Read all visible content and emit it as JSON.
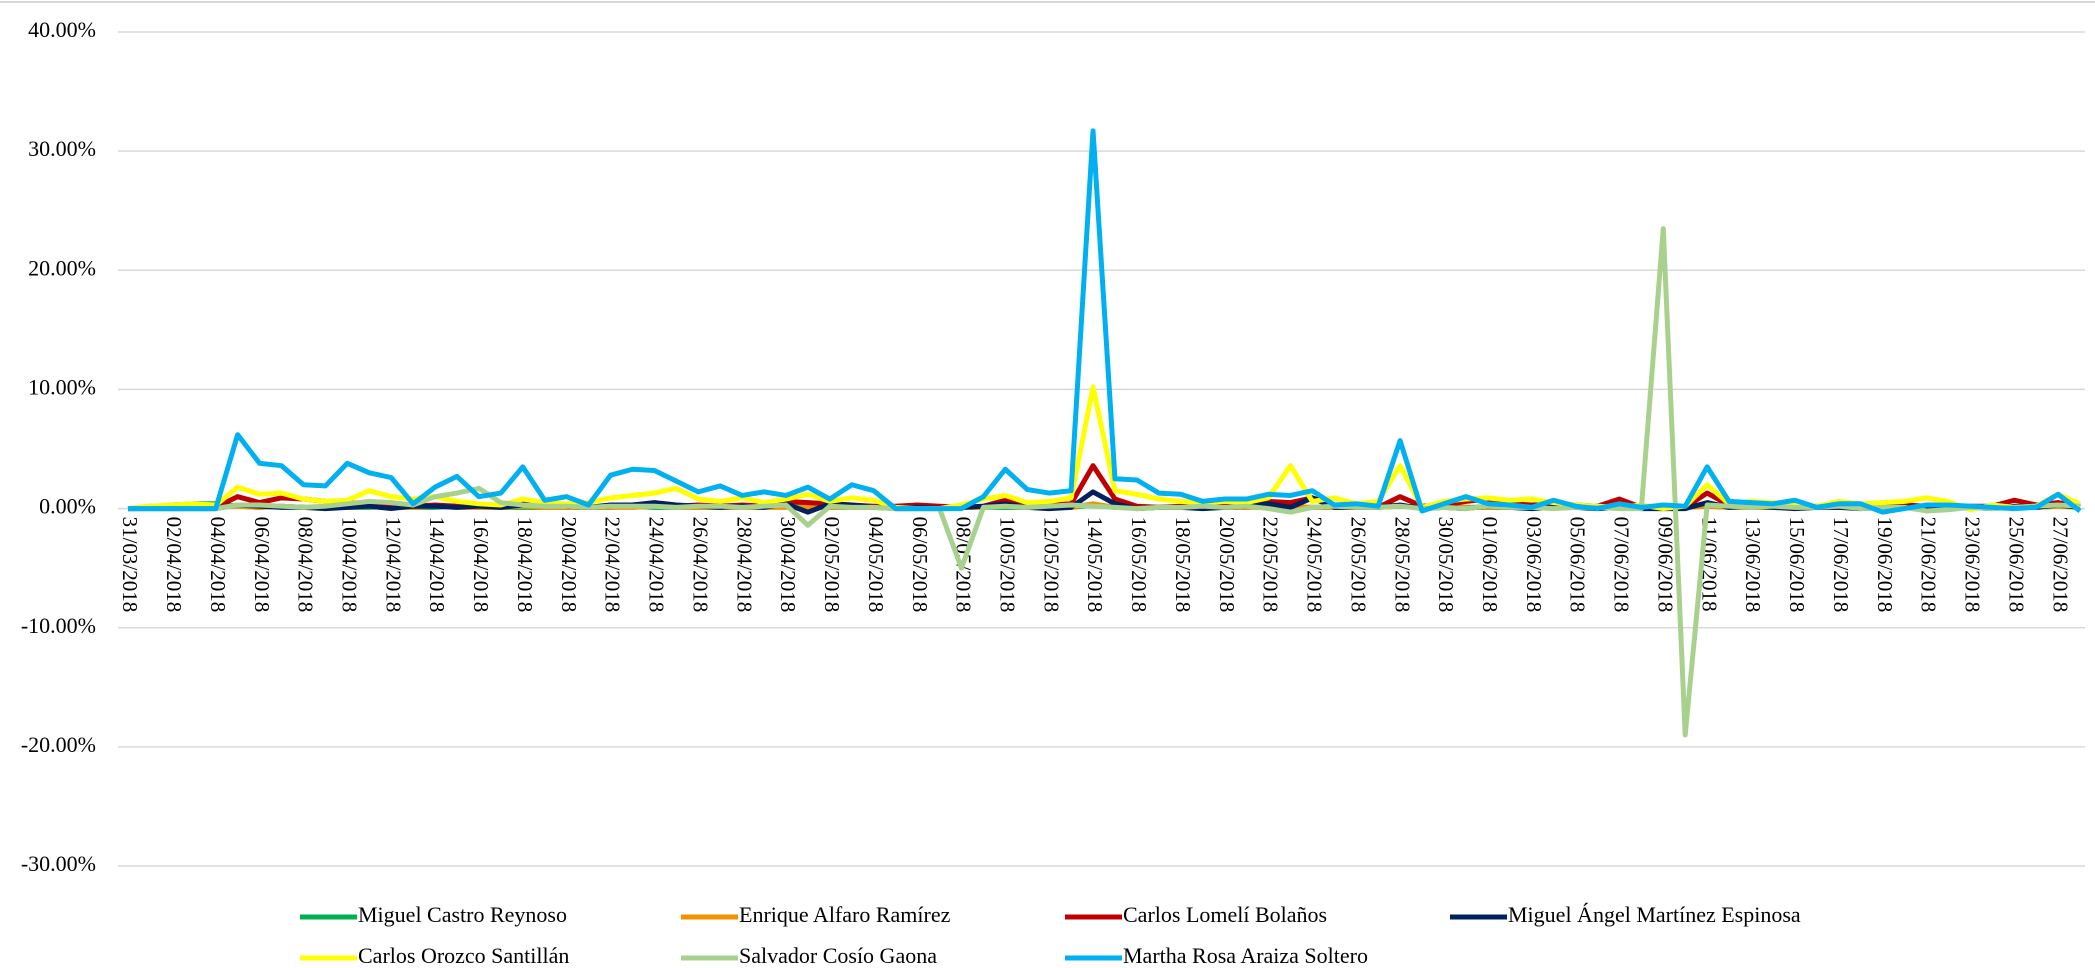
{
  "chart_data": {
    "type": "line",
    "categories": [
      "31/03/2018",
      null,
      "02/04/2018",
      null,
      "04/04/2018",
      null,
      "06/04/2018",
      null,
      "08/04/2018",
      null,
      "10/04/2018",
      null,
      "12/04/2018",
      null,
      "14/04/2018",
      null,
      "16/04/2018",
      null,
      "18/04/2018",
      null,
      "20/04/2018",
      null,
      "22/04/2018",
      null,
      "24/04/2018",
      null,
      "26/04/2018",
      null,
      "28/04/2018",
      null,
      "30/04/2018",
      null,
      "02/05/2018",
      null,
      "04/05/2018",
      null,
      "06/05/2018",
      null,
      "08/05/2018",
      null,
      "10/05/2018",
      null,
      "12/05/2018",
      null,
      "14/05/2018",
      null,
      "16/05/2018",
      null,
      "18/05/2018",
      null,
      "20/05/2018",
      null,
      "22/05/2018",
      null,
      "24/05/2018",
      null,
      "26/05/2018",
      null,
      "28/05/2018",
      null,
      "30/05/2018",
      null,
      "01/06/2018",
      null,
      "03/06/2018",
      null,
      "05/06/2018",
      null,
      "07/06/2018",
      null,
      "09/06/2018",
      null,
      "11/06/2018",
      null,
      "13/06/2018",
      null,
      "15/06/2018",
      null,
      "17/06/2018",
      null,
      "19/06/2018",
      null,
      "21/06/2018",
      null,
      "23/06/2018",
      null,
      "25/06/2018",
      null,
      "27/06/2018",
      null
    ],
    "series": [
      {
        "name": "Miguel Castro Reynoso",
        "color": "#00b050",
        "values": [
          0,
          0.1,
          0.3,
          0.4,
          0.4,
          0.2,
          0.1,
          0.2,
          0.1,
          0.1,
          0.1,
          0.1,
          0.2,
          0.1,
          0.1,
          0.2,
          0.1,
          0.1,
          0.1,
          0.1,
          0.1,
          0.1,
          0.1,
          0.2,
          0.1,
          0.1,
          0.1,
          0.1,
          0.1,
          0.1,
          0.2,
          0.1,
          0.1,
          0.1,
          0.1,
          0,
          0,
          0,
          0.1,
          0.1,
          0.1,
          0.1,
          0.1,
          0.1,
          0.3,
          0.1,
          0.1,
          0.1,
          0.1,
          0.1,
          0.1,
          0.1,
          0.2,
          0.1,
          0.1,
          0.1,
          0.1,
          0.1,
          0.2,
          0.1,
          0.1,
          0.1,
          0.1,
          0.1,
          0.1,
          0.1,
          0.1,
          0.1,
          0.1,
          0.1,
          0.1,
          0.1,
          0.2,
          0.1,
          0.1,
          0.1,
          0.1,
          0.1,
          0.1,
          0.1,
          0.1,
          0.1,
          0.1,
          0.1,
          0.1,
          0.1,
          0.1,
          0.1,
          0.2,
          0.1
        ]
      },
      {
        "name": "Enrique Alfaro Ramírez",
        "color": "#f39200",
        "values": [
          0,
          0.2,
          0.2,
          0.3,
          0.2,
          0.2,
          0.1,
          0.2,
          0.1,
          0.1,
          0.1,
          0.2,
          0.1,
          0.1,
          0.2,
          0.1,
          0.1,
          0.1,
          0.2,
          0.1,
          0.1,
          0.1,
          0.1,
          0.1,
          0.2,
          0.1,
          0.1,
          0.1,
          0.1,
          0.1,
          0.1,
          0.1,
          0.1,
          0.1,
          0.1,
          0,
          0,
          0,
          0.1,
          0.1,
          0.2,
          0.1,
          0.1,
          0.1,
          0.4,
          0.1,
          0.1,
          0.1,
          0.1,
          0.1,
          0.1,
          0.1,
          0.1,
          0.2,
          0.1,
          0.1,
          0.1,
          0.1,
          0.2,
          0.1,
          0.1,
          0.1,
          0.1,
          0.1,
          0.1,
          0.1,
          0.1,
          0.1,
          0.1,
          0.1,
          0.1,
          0.1,
          0.2,
          0.1,
          0.1,
          0.1,
          0.1,
          0.1,
          0.1,
          0.1,
          0.1,
          0.1,
          0.1,
          0.1,
          0.1,
          0.1,
          0.1,
          0.1,
          0.2,
          0.1
        ]
      },
      {
        "name": "Carlos Lomelí Bolaños",
        "color": "#c00000",
        "values": [
          0,
          0.1,
          0.1,
          0.1,
          0.1,
          1.0,
          0.5,
          0.9,
          0.8,
          0.6,
          0.5,
          0.4,
          0.3,
          0.2,
          0.3,
          0.2,
          0.3,
          0.2,
          0.6,
          0.4,
          0.2,
          0.1,
          0.2,
          0.3,
          0.4,
          0.2,
          0.3,
          0.2,
          0.3,
          0.2,
          0.6,
          0.5,
          0.4,
          0.3,
          0.2,
          0.2,
          0.3,
          0.2,
          0.1,
          0.2,
          0.7,
          0.2,
          0.3,
          0.4,
          3.6,
          0.8,
          0.2,
          0.1,
          0.2,
          0.1,
          0.2,
          0.3,
          0.6,
          0.5,
          0.9,
          0.3,
          0.2,
          0.1,
          1.0,
          0.2,
          0.3,
          0.6,
          0.8,
          0.4,
          0.3,
          0.4,
          0.3,
          0.2,
          0.8,
          0.1,
          0.2,
          0.1,
          1.3,
          0.3,
          0.2,
          0.3,
          0.1,
          0.2,
          0.3,
          0.1,
          0.2,
          0.3,
          0.2,
          0.1,
          0.2,
          0.2,
          0.7,
          0.3,
          0.5,
          0.2
        ]
      },
      {
        "name": "Miguel Ángel Martínez Espinosa",
        "color": "#002060",
        "values": [
          0,
          0,
          0,
          0,
          0,
          0.3,
          0.2,
          0.1,
          0.1,
          0,
          0.1,
          0.2,
          0,
          0.2,
          0.2,
          0.1,
          0.2,
          0.1,
          0.3,
          0.5,
          0.2,
          0.1,
          0.3,
          0.3,
          0.5,
          0.3,
          0.2,
          0.1,
          0.2,
          0.1,
          0.4,
          -0.3,
          0.4,
          0.3,
          0.1,
          0.1,
          0.1,
          0,
          0.1,
          0.2,
          0.4,
          0.1,
          0,
          0.1,
          1.4,
          0.4,
          0,
          0.1,
          0.1,
          0,
          0.1,
          0.2,
          0.4,
          0.1,
          0.9,
          0.1,
          0.1,
          0.1,
          0.3,
          0,
          0.1,
          0,
          0.2,
          0.1,
          0,
          0.1,
          0.1,
          0,
          0.1,
          0,
          0,
          0,
          0.5,
          0.1,
          0.2,
          0.1,
          0,
          0.1,
          0.1,
          0,
          0.1,
          0.1,
          0.1,
          0,
          0.1,
          0,
          0.2,
          0.1,
          0.3,
          0.1
        ]
      },
      {
        "name": "Carlos Orozco Santillán",
        "color": "#ffff00",
        "values": [
          0,
          0.2,
          0.3,
          0.4,
          0.3,
          1.8,
          1.2,
          1.3,
          0.8,
          0.6,
          0.7,
          1.5,
          1.0,
          0.8,
          1.0,
          0.6,
          0.4,
          0.3,
          0.8,
          0.5,
          0.4,
          0.5,
          0.9,
          1.1,
          1.3,
          1.7,
          0.8,
          0.6,
          0.9,
          0.5,
          0.8,
          1.2,
          0.6,
          0.9,
          0.7,
          0.1,
          0,
          0,
          0.3,
          0.8,
          1.1,
          0.5,
          0.6,
          0.9,
          10.2,
          1.5,
          1.2,
          0.8,
          0.6,
          0.5,
          0.6,
          0.5,
          0.9,
          3.6,
          0.6,
          0.9,
          0.4,
          0.6,
          3.6,
          0.1,
          0.6,
          0.8,
          0.9,
          0.7,
          0.8,
          0.5,
          0.3,
          0.2,
          0.1,
          0.3,
          0,
          0.2,
          2.0,
          0.4,
          0.6,
          0.5,
          0.3,
          0.2,
          0.6,
          0.4,
          0.5,
          0.6,
          0.9,
          0.6,
          -0.1,
          0.3,
          0.1,
          0.2,
          1.2,
          0.4
        ]
      },
      {
        "name": "Salvador Cosío Gaona",
        "color": "#a9d18e",
        "values": [
          0,
          0,
          0,
          0,
          0,
          0.3,
          0.3,
          0.2,
          0.1,
          0.2,
          0.4,
          0.6,
          0.5,
          0.3,
          1.0,
          1.3,
          1.7,
          0.5,
          0.3,
          0.2,
          0.2,
          0.1,
          0.2,
          0.2,
          0.2,
          0.1,
          0.2,
          0.2,
          0.1,
          0.2,
          0.3,
          -1.4,
          0.2,
          0.1,
          0.1,
          0,
          0,
          0,
          -5.0,
          0.1,
          0.2,
          0.1,
          0.2,
          0.3,
          0.2,
          0.1,
          0,
          0.1,
          0.1,
          0.2,
          0.1,
          0.2,
          0,
          -0.3,
          0.1,
          0.2,
          0.1,
          0.1,
          0.2,
          0,
          0.1,
          0,
          0.2,
          0.1,
          0.1,
          0,
          0.1,
          0.1,
          0,
          0,
          23.5,
          -19.0,
          0.3,
          0.2,
          0.1,
          0.2,
          0.1,
          0.1,
          0.2,
          0,
          0.1,
          0.1,
          -0.2,
          -0.1,
          0.1,
          0,
          0.1,
          0.2,
          0.3,
          0.2
        ]
      },
      {
        "name": "Martha Rosa Araiza Soltero",
        "color": "#00b0f0",
        "values": [
          0,
          0,
          0,
          0,
          0,
          6.2,
          3.8,
          3.6,
          2.0,
          1.9,
          3.8,
          3.0,
          2.6,
          0.4,
          1.8,
          2.7,
          1.0,
          1.3,
          3.5,
          0.7,
          1.0,
          0.3,
          2.8,
          3.3,
          3.2,
          2.3,
          1.4,
          1.9,
          1.1,
          1.4,
          1.1,
          1.8,
          0.8,
          2.0,
          1.5,
          0,
          0,
          0,
          0,
          1.0,
          3.3,
          1.6,
          1.3,
          1.5,
          31.7,
          2.5,
          2.4,
          1.3,
          1.2,
          0.6,
          0.8,
          0.8,
          1.2,
          1.1,
          1.5,
          0.3,
          0.4,
          0.2,
          5.7,
          -0.2,
          0.4,
          1.0,
          0.4,
          0.3,
          0.1,
          0.7,
          0.2,
          0,
          0.4,
          0.1,
          0.3,
          0.2,
          3.5,
          0.6,
          0.5,
          0.4,
          0.7,
          0.1,
          0.4,
          0.4,
          -0.3,
          0,
          0.3,
          0.3,
          0.2,
          0.1,
          0,
          0.1,
          1.2,
          -0.2
        ]
      }
    ],
    "ylim": [
      -30,
      40
    ],
    "yticks": [
      {
        "value": -30,
        "label": "-30.00%"
      },
      {
        "value": -20,
        "label": "-20.00%"
      },
      {
        "value": -10,
        "label": "-10.00%"
      },
      {
        "value": 0,
        "label": "0.00%"
      },
      {
        "value": 10,
        "label": "10.00%"
      },
      {
        "value": 20,
        "label": "20.00%"
      },
      {
        "value": 30,
        "label": "30.00%"
      },
      {
        "value": 40,
        "label": "40.00%"
      }
    ],
    "grid": true,
    "legend": "bottom"
  }
}
